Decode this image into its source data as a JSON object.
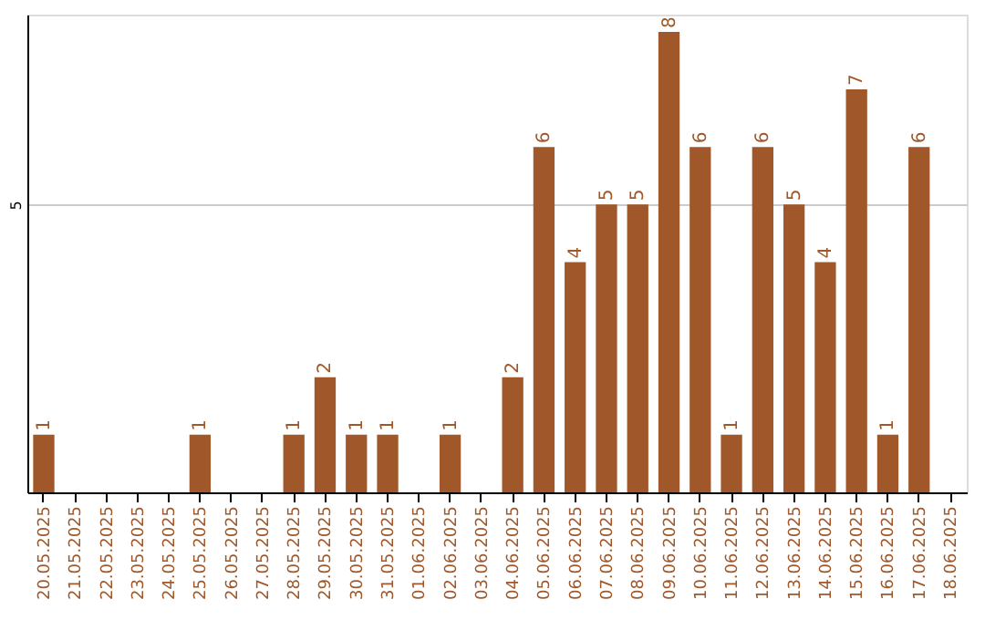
{
  "chart_data": {
    "type": "bar",
    "categories": [
      "20.05.2025",
      "21.05.2025",
      "22.05.2025",
      "23.05.2025",
      "24.05.2025",
      "25.05.2025",
      "26.05.2025",
      "27.05.2025",
      "28.05.2025",
      "29.05.2025",
      "30.05.2025",
      "31.05.2025",
      "01.06.2025",
      "02.06.2025",
      "03.06.2025",
      "04.06.2025",
      "05.06.2025",
      "06.06.2025",
      "07.06.2025",
      "08.06.2025",
      "09.06.2025",
      "10.06.2025",
      "11.06.2025",
      "12.06.2025",
      "13.06.2025",
      "14.06.2025",
      "15.06.2025",
      "16.06.2025",
      "17.06.2025",
      "18.06.2025"
    ],
    "series": [
      {
        "color": "#a0582a",
        "values": [
          1,
          0,
          0,
          0,
          0,
          1,
          0,
          0,
          1,
          2,
          1,
          1,
          0,
          1,
          0,
          2,
          6,
          4,
          5,
          5,
          8,
          6,
          1,
          6,
          5,
          4,
          7,
          1,
          6,
          0
        ],
        "value_labels": [
          "1",
          null,
          null,
          null,
          null,
          "1",
          null,
          null,
          "1",
          "2",
          "1",
          "1",
          null,
          "1",
          null,
          "2",
          "6",
          "4",
          "5",
          "5",
          "8",
          "6",
          "1",
          "6",
          "5",
          "4",
          "7",
          "1",
          "6",
          null
        ]
      }
    ],
    "ylim": [
      0,
      8.3
    ],
    "yticks": [
      5
    ],
    "grid": "y"
  }
}
